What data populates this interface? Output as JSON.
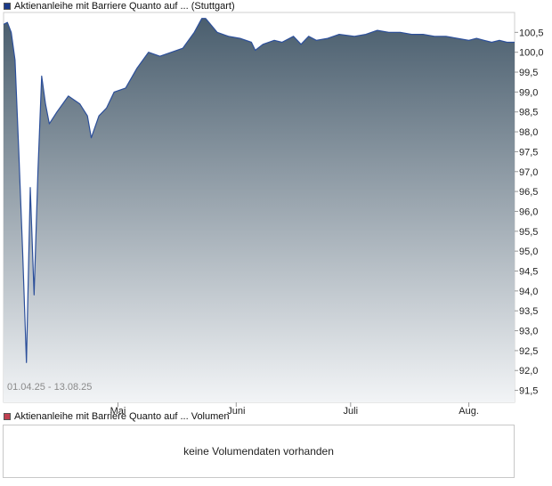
{
  "legend": {
    "price_label": "Aktienanleihe mit Barriere Quanto auf ... (Stuttgart)",
    "price_color": "#1a3a8a",
    "volume_label": "Aktienanleihe mit Barriere Quanto auf ... Volumen",
    "volume_color": "#c04050"
  },
  "volume_panel": {
    "message": "keine Volumendaten vorhanden"
  },
  "chart_data": {
    "type": "area",
    "date_range_label": "01.04.25 - 13.08.25",
    "x_tick_labels": [
      "Mai",
      "Juni",
      "Juli",
      "Aug."
    ],
    "x_tick_dates": [
      "2025-05-01",
      "2025-06-01",
      "2025-07-01",
      "2025-08-01"
    ],
    "x_range": [
      "2025-04-01",
      "2025-08-13"
    ],
    "y_tick_labels": [
      "91,5",
      "92,0",
      "92,5",
      "93,0",
      "93,5",
      "94,0",
      "94,5",
      "95,0",
      "95,5",
      "96,0",
      "96,5",
      "97,0",
      "97,5",
      "98,0",
      "98,5",
      "99,0",
      "99,5",
      "100,0",
      "100,5"
    ],
    "y_ticks": [
      91.5,
      92.0,
      92.5,
      93.0,
      93.5,
      94.0,
      94.5,
      95.0,
      95.5,
      96.0,
      96.5,
      97.0,
      97.5,
      98.0,
      98.5,
      99.0,
      99.5,
      100.0,
      100.5
    ],
    "ylim": [
      91.2,
      101.0
    ],
    "grid": false,
    "line_color": "#2c4f9a",
    "fill_top_color": "#4a5e6e",
    "fill_bottom_color": "#f2f4f6",
    "series": [
      {
        "points": [
          [
            "2025-04-01",
            100.7
          ],
          [
            "2025-04-02",
            100.75
          ],
          [
            "2025-04-03",
            100.5
          ],
          [
            "2025-04-04",
            99.8
          ],
          [
            "2025-04-05",
            97.5
          ],
          [
            "2025-04-06",
            95.0
          ],
          [
            "2025-04-07",
            92.2
          ],
          [
            "2025-04-08",
            96.6
          ],
          [
            "2025-04-09",
            93.9
          ],
          [
            "2025-04-10",
            97.0
          ],
          [
            "2025-04-11",
            99.4
          ],
          [
            "2025-04-12",
            98.7
          ],
          [
            "2025-04-13",
            98.2
          ],
          [
            "2025-04-15",
            98.5
          ],
          [
            "2025-04-18",
            98.9
          ],
          [
            "2025-04-21",
            98.7
          ],
          [
            "2025-04-23",
            98.4
          ],
          [
            "2025-04-24",
            97.85
          ],
          [
            "2025-04-26",
            98.4
          ],
          [
            "2025-04-28",
            98.6
          ],
          [
            "2025-04-30",
            99.0
          ],
          [
            "2025-05-03",
            99.1
          ],
          [
            "2025-05-06",
            99.6
          ],
          [
            "2025-05-09",
            100.0
          ],
          [
            "2025-05-12",
            99.9
          ],
          [
            "2025-05-15",
            100.0
          ],
          [
            "2025-05-18",
            100.1
          ],
          [
            "2025-05-21",
            100.5
          ],
          [
            "2025-05-23",
            100.85
          ],
          [
            "2025-05-24",
            100.85
          ],
          [
            "2025-05-27",
            100.5
          ],
          [
            "2025-05-30",
            100.4
          ],
          [
            "2025-06-02",
            100.35
          ],
          [
            "2025-06-05",
            100.25
          ],
          [
            "2025-06-06",
            100.05
          ],
          [
            "2025-06-08",
            100.2
          ],
          [
            "2025-06-11",
            100.3
          ],
          [
            "2025-06-13",
            100.25
          ],
          [
            "2025-06-16",
            100.4
          ],
          [
            "2025-06-18",
            100.2
          ],
          [
            "2025-06-20",
            100.4
          ],
          [
            "2025-06-22",
            100.3
          ],
          [
            "2025-06-25",
            100.35
          ],
          [
            "2025-06-28",
            100.45
          ],
          [
            "2025-07-02",
            100.4
          ],
          [
            "2025-07-05",
            100.45
          ],
          [
            "2025-07-08",
            100.55
          ],
          [
            "2025-07-11",
            100.5
          ],
          [
            "2025-07-14",
            100.5
          ],
          [
            "2025-07-17",
            100.45
          ],
          [
            "2025-07-20",
            100.45
          ],
          [
            "2025-07-23",
            100.4
          ],
          [
            "2025-07-26",
            100.4
          ],
          [
            "2025-07-29",
            100.35
          ],
          [
            "2025-08-01",
            100.3
          ],
          [
            "2025-08-03",
            100.35
          ],
          [
            "2025-08-05",
            100.3
          ],
          [
            "2025-08-07",
            100.25
          ],
          [
            "2025-08-09",
            100.3
          ],
          [
            "2025-08-11",
            100.25
          ],
          [
            "2025-08-13",
            100.25
          ]
        ]
      }
    ]
  }
}
